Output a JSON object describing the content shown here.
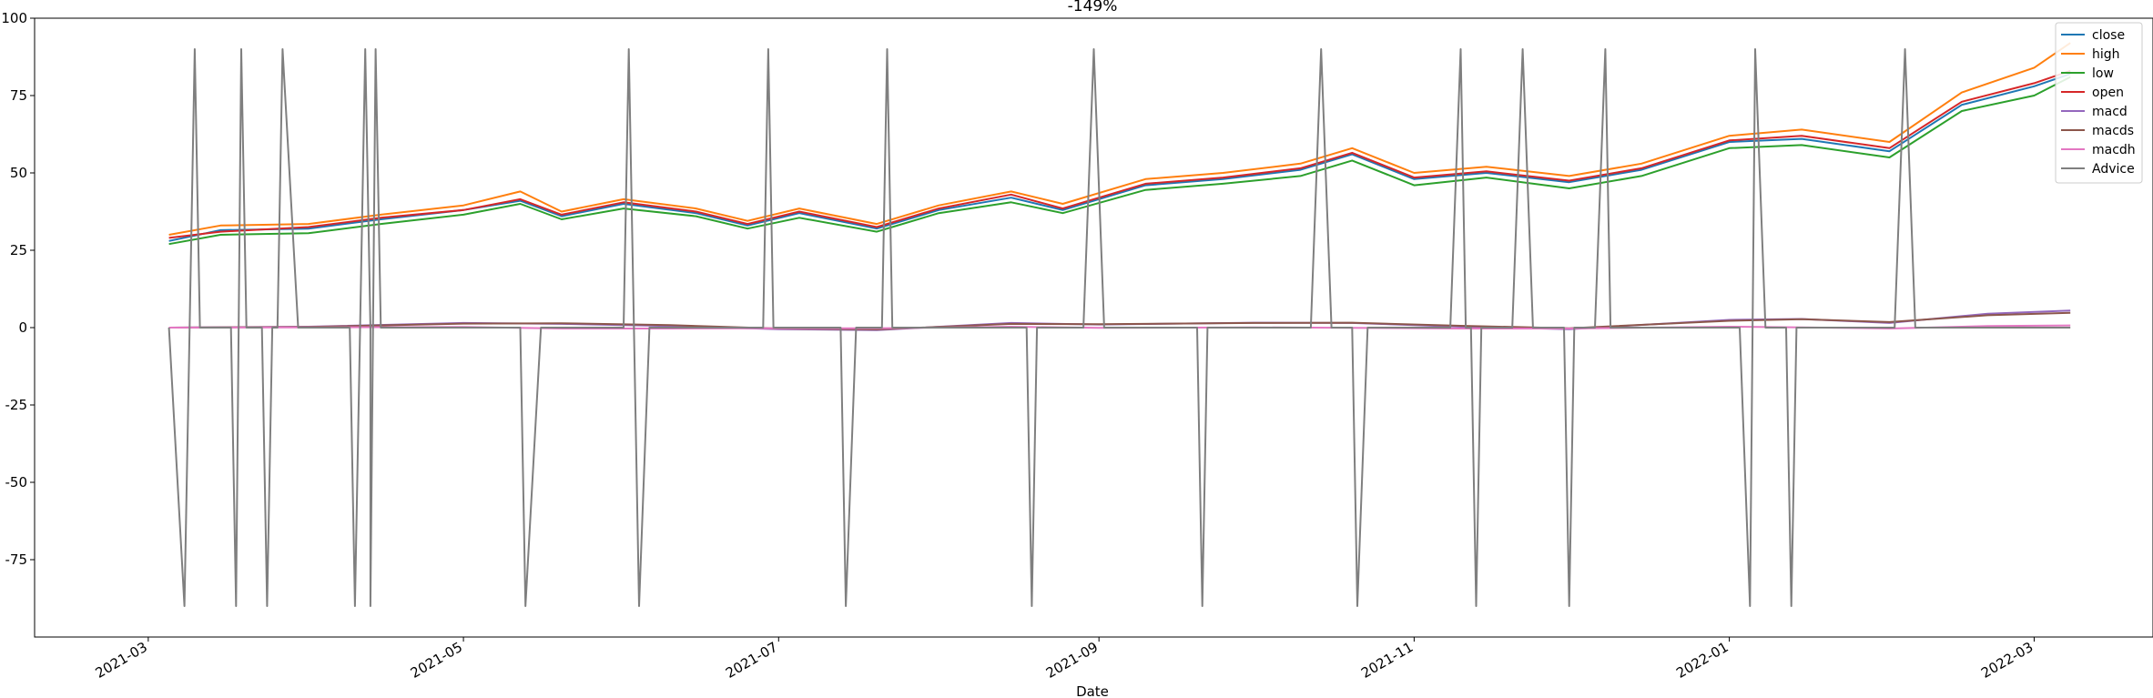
{
  "chart_data": {
    "type": "line",
    "title": "-149%",
    "xlabel": "Date",
    "ylabel": "",
    "xlim": [
      "2021-02-07",
      "2022-03-24"
    ],
    "ylim": [
      -100,
      100
    ],
    "x_ticks": [
      "2021-03",
      "2021-05",
      "2021-07",
      "2021-09",
      "2021-11",
      "2022-01",
      "2022-03"
    ],
    "y_ticks": [
      100,
      75,
      50,
      25,
      0,
      -25,
      -50,
      -75
    ],
    "grid": false,
    "legend_position": "upper-right",
    "series": [
      {
        "name": "close",
        "color": "#1f77b4",
        "points": [
          [
            "2021-03-05",
            28
          ],
          [
            "2021-03-15",
            31.5
          ],
          [
            "2021-04-01",
            32
          ],
          [
            "2021-04-15",
            35
          ],
          [
            "2021-05-01",
            38
          ],
          [
            "2021-05-12",
            41
          ],
          [
            "2021-05-20",
            36
          ],
          [
            "2021-06-01",
            40
          ],
          [
            "2021-06-15",
            37
          ],
          [
            "2021-06-25",
            33
          ],
          [
            "2021-07-05",
            37
          ],
          [
            "2021-07-20",
            32
          ],
          [
            "2021-08-01",
            38
          ],
          [
            "2021-08-15",
            42
          ],
          [
            "2021-08-25",
            38
          ],
          [
            "2021-09-10",
            46
          ],
          [
            "2021-09-25",
            48
          ],
          [
            "2021-10-10",
            51
          ],
          [
            "2021-10-20",
            56
          ],
          [
            "2021-11-01",
            48
          ],
          [
            "2021-11-15",
            50
          ],
          [
            "2021-12-01",
            47
          ],
          [
            "2021-12-15",
            51
          ],
          [
            "2022-01-01",
            60
          ],
          [
            "2022-01-15",
            61
          ],
          [
            "2022-02-01",
            57
          ],
          [
            "2022-02-15",
            72
          ],
          [
            "2022-03-01",
            78
          ],
          [
            "2022-03-08",
            82
          ]
        ]
      },
      {
        "name": "high",
        "color": "#ff7f0e",
        "points": [
          [
            "2021-03-05",
            30
          ],
          [
            "2021-03-15",
            33
          ],
          [
            "2021-04-01",
            33.5
          ],
          [
            "2021-04-15",
            36.5
          ],
          [
            "2021-05-01",
            39.5
          ],
          [
            "2021-05-12",
            44
          ],
          [
            "2021-05-20",
            37.5
          ],
          [
            "2021-06-01",
            41.5
          ],
          [
            "2021-06-15",
            38.5
          ],
          [
            "2021-06-25",
            34.5
          ],
          [
            "2021-07-05",
            38.5
          ],
          [
            "2021-07-20",
            33.5
          ],
          [
            "2021-08-01",
            39.5
          ],
          [
            "2021-08-15",
            44
          ],
          [
            "2021-08-25",
            40
          ],
          [
            "2021-09-10",
            48
          ],
          [
            "2021-09-25",
            50
          ],
          [
            "2021-10-10",
            53
          ],
          [
            "2021-10-20",
            58
          ],
          [
            "2021-11-01",
            50
          ],
          [
            "2021-11-15",
            52
          ],
          [
            "2021-12-01",
            49
          ],
          [
            "2021-12-15",
            53
          ],
          [
            "2022-01-01",
            62
          ],
          [
            "2022-01-15",
            64
          ],
          [
            "2022-02-01",
            60
          ],
          [
            "2022-02-15",
            76
          ],
          [
            "2022-03-01",
            84
          ],
          [
            "2022-03-08",
            92
          ]
        ]
      },
      {
        "name": "low",
        "color": "#2ca02c",
        "points": [
          [
            "2021-03-05",
            27
          ],
          [
            "2021-03-15",
            30
          ],
          [
            "2021-04-01",
            30.5
          ],
          [
            "2021-04-15",
            33.5
          ],
          [
            "2021-05-01",
            36.5
          ],
          [
            "2021-05-12",
            40
          ],
          [
            "2021-05-20",
            35
          ],
          [
            "2021-06-01",
            38.5
          ],
          [
            "2021-06-15",
            36
          ],
          [
            "2021-06-25",
            32
          ],
          [
            "2021-07-05",
            35.5
          ],
          [
            "2021-07-20",
            31
          ],
          [
            "2021-08-01",
            37
          ],
          [
            "2021-08-15",
            40.5
          ],
          [
            "2021-08-25",
            37
          ],
          [
            "2021-09-10",
            44.5
          ],
          [
            "2021-09-25",
            46.5
          ],
          [
            "2021-10-10",
            49
          ],
          [
            "2021-10-20",
            54
          ],
          [
            "2021-11-01",
            46
          ],
          [
            "2021-11-15",
            48.5
          ],
          [
            "2021-12-01",
            45
          ],
          [
            "2021-12-15",
            49
          ],
          [
            "2022-01-01",
            58
          ],
          [
            "2022-01-15",
            59
          ],
          [
            "2022-02-01",
            55
          ],
          [
            "2022-02-15",
            70
          ],
          [
            "2022-03-01",
            75
          ],
          [
            "2022-03-08",
            81
          ]
        ]
      },
      {
        "name": "open",
        "color": "#d62728",
        "points": [
          [
            "2021-03-05",
            29
          ],
          [
            "2021-03-15",
            31
          ],
          [
            "2021-04-01",
            32.5
          ],
          [
            "2021-04-15",
            35.5
          ],
          [
            "2021-05-01",
            38
          ],
          [
            "2021-05-12",
            41.5
          ],
          [
            "2021-05-20",
            36.5
          ],
          [
            "2021-06-01",
            40.5
          ],
          [
            "2021-06-15",
            37.5
          ],
          [
            "2021-06-25",
            33.5
          ],
          [
            "2021-07-05",
            37.5
          ],
          [
            "2021-07-20",
            32.5
          ],
          [
            "2021-08-01",
            38.5
          ],
          [
            "2021-08-15",
            43
          ],
          [
            "2021-08-25",
            38.5
          ],
          [
            "2021-09-10",
            46.5
          ],
          [
            "2021-09-25",
            48.5
          ],
          [
            "2021-10-10",
            51.5
          ],
          [
            "2021-10-20",
            56.5
          ],
          [
            "2021-11-01",
            48.5
          ],
          [
            "2021-11-15",
            50.5
          ],
          [
            "2021-12-01",
            47.5
          ],
          [
            "2021-12-15",
            51.5
          ],
          [
            "2022-01-01",
            60.5
          ],
          [
            "2022-01-15",
            62
          ],
          [
            "2022-02-01",
            58
          ],
          [
            "2022-02-15",
            73
          ],
          [
            "2022-03-01",
            79
          ],
          [
            "2022-03-08",
            83
          ]
        ]
      },
      {
        "name": "macd",
        "color": "#9467bd",
        "points": [
          [
            "2021-03-05",
            0
          ],
          [
            "2021-04-01",
            0.3
          ],
          [
            "2021-05-01",
            1.5
          ],
          [
            "2021-05-20",
            1.2
          ],
          [
            "2021-06-10",
            0.5
          ],
          [
            "2021-07-01",
            -0.5
          ],
          [
            "2021-07-20",
            -0.8
          ],
          [
            "2021-08-15",
            1.5
          ],
          [
            "2021-09-01",
            1.0
          ],
          [
            "2021-10-01",
            1.6
          ],
          [
            "2021-10-20",
            1.5
          ],
          [
            "2021-11-10",
            0.3
          ],
          [
            "2021-12-01",
            -0.5
          ],
          [
            "2022-01-01",
            2.5
          ],
          [
            "2022-01-15",
            2.8
          ],
          [
            "2022-02-01",
            1.5
          ],
          [
            "2022-02-20",
            4.5
          ],
          [
            "2022-03-08",
            5.5
          ]
        ]
      },
      {
        "name": "macds",
        "color": "#8c564b",
        "points": [
          [
            "2021-03-05",
            0
          ],
          [
            "2021-04-01",
            0.2
          ],
          [
            "2021-05-01",
            1.3
          ],
          [
            "2021-05-20",
            1.4
          ],
          [
            "2021-06-10",
            0.8
          ],
          [
            "2021-07-01",
            -0.3
          ],
          [
            "2021-07-20",
            -0.6
          ],
          [
            "2021-08-15",
            1.2
          ],
          [
            "2021-09-01",
            1.1
          ],
          [
            "2021-10-01",
            1.5
          ],
          [
            "2021-10-20",
            1.6
          ],
          [
            "2021-11-10",
            0.6
          ],
          [
            "2021-12-01",
            -0.2
          ],
          [
            "2022-01-01",
            2.2
          ],
          [
            "2022-01-15",
            2.7
          ],
          [
            "2022-02-01",
            1.8
          ],
          [
            "2022-02-20",
            4.0
          ],
          [
            "2022-03-08",
            4.8
          ]
        ]
      },
      {
        "name": "macdh",
        "color": "#e377c2",
        "points": [
          [
            "2021-03-05",
            0
          ],
          [
            "2021-04-01",
            0.1
          ],
          [
            "2021-05-01",
            0.2
          ],
          [
            "2021-05-20",
            -0.3
          ],
          [
            "2021-06-10",
            -0.3
          ],
          [
            "2021-07-01",
            -0.2
          ],
          [
            "2021-07-20",
            -0.2
          ],
          [
            "2021-08-15",
            0.3
          ],
          [
            "2021-09-01",
            -0.1
          ],
          [
            "2021-10-01",
            0.1
          ],
          [
            "2021-10-20",
            -0.1
          ],
          [
            "2021-11-10",
            -0.3
          ],
          [
            "2021-12-01",
            -0.3
          ],
          [
            "2022-01-01",
            0.3
          ],
          [
            "2022-01-15",
            0.1
          ],
          [
            "2022-02-01",
            -0.3
          ],
          [
            "2022-02-20",
            0.5
          ],
          [
            "2022-03-08",
            0.7
          ]
        ]
      },
      {
        "name": "Advice",
        "color": "#7f7f7f",
        "points": [
          [
            "2021-03-05",
            0
          ],
          [
            "2021-03-08",
            -90
          ],
          [
            "2021-03-09",
            0
          ],
          [
            "2021-03-10",
            90
          ],
          [
            "2021-03-11",
            0
          ],
          [
            "2021-03-17",
            0
          ],
          [
            "2021-03-18",
            -90
          ],
          [
            "2021-03-19",
            90
          ],
          [
            "2021-03-20",
            0
          ],
          [
            "2021-03-23",
            0
          ],
          [
            "2021-03-24",
            -90
          ],
          [
            "2021-03-25",
            0
          ],
          [
            "2021-03-26",
            0
          ],
          [
            "2021-03-27",
            90
          ],
          [
            "2021-03-30",
            0
          ],
          [
            "2021-04-09",
            0
          ],
          [
            "2021-04-10",
            -90
          ],
          [
            "2021-04-12",
            90
          ],
          [
            "2021-04-13",
            0
          ],
          [
            "2021-04-13",
            -90
          ],
          [
            "2021-04-14",
            90
          ],
          [
            "2021-04-15",
            0
          ],
          [
            "2021-05-12",
            0
          ],
          [
            "2021-05-13",
            -90
          ],
          [
            "2021-05-16",
            0
          ],
          [
            "2021-06-01",
            0
          ],
          [
            "2021-06-02",
            90
          ],
          [
            "2021-06-04",
            -90
          ],
          [
            "2021-06-06",
            0
          ],
          [
            "2021-06-28",
            0
          ],
          [
            "2021-06-29",
            90
          ],
          [
            "2021-06-30",
            0
          ],
          [
            "2021-07-13",
            0
          ],
          [
            "2021-07-14",
            -90
          ],
          [
            "2021-07-16",
            0
          ],
          [
            "2021-07-21",
            0
          ],
          [
            "2021-07-22",
            90
          ],
          [
            "2021-07-23",
            0
          ],
          [
            "2021-08-18",
            0
          ],
          [
            "2021-08-19",
            -90
          ],
          [
            "2021-08-20",
            0
          ],
          [
            "2021-08-29",
            0
          ],
          [
            "2021-08-31",
            90
          ],
          [
            "2021-09-02",
            0
          ],
          [
            "2021-09-20",
            0
          ],
          [
            "2021-09-21",
            -90
          ],
          [
            "2021-09-22",
            0
          ],
          [
            "2021-10-12",
            0
          ],
          [
            "2021-10-14",
            90
          ],
          [
            "2021-10-16",
            0
          ],
          [
            "2021-10-20",
            0
          ],
          [
            "2021-10-21",
            -90
          ],
          [
            "2021-10-23",
            0
          ],
          [
            "2021-11-08",
            0
          ],
          [
            "2021-11-10",
            90
          ],
          [
            "2021-11-11",
            0
          ],
          [
            "2021-11-12",
            0
          ],
          [
            "2021-11-13",
            -90
          ],
          [
            "2021-11-14",
            0
          ],
          [
            "2021-11-20",
            0
          ],
          [
            "2021-11-22",
            90
          ],
          [
            "2021-11-24",
            0
          ],
          [
            "2021-11-30",
            0
          ],
          [
            "2021-12-01",
            -90
          ],
          [
            "2021-12-02",
            0
          ],
          [
            "2021-12-06",
            0
          ],
          [
            "2021-12-08",
            90
          ],
          [
            "2021-12-09",
            0
          ],
          [
            "2022-01-03",
            0
          ],
          [
            "2022-01-05",
            -90
          ],
          [
            "2022-01-06",
            90
          ],
          [
            "2022-01-08",
            0
          ],
          [
            "2022-01-12",
            0
          ],
          [
            "2022-01-13",
            -90
          ],
          [
            "2022-01-14",
            0
          ],
          [
            "2022-01-28",
            0
          ],
          [
            "2022-02-02",
            0
          ],
          [
            "2022-02-04",
            90
          ],
          [
            "2022-02-06",
            0
          ],
          [
            "2022-03-08",
            0
          ]
        ]
      }
    ]
  }
}
